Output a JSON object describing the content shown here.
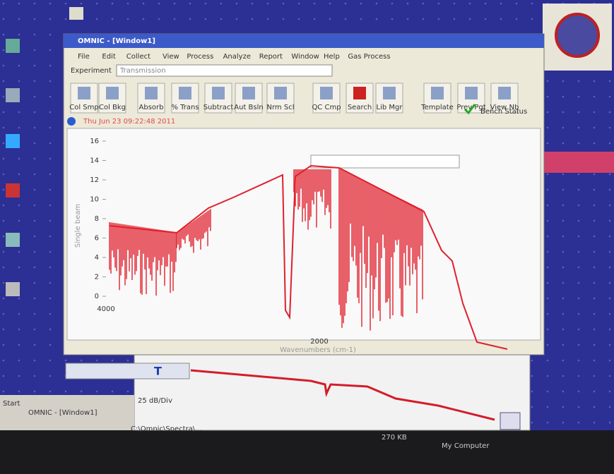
{
  "window": {
    "title": "OMNIC - [Window1]",
    "menu": [
      "File",
      "Edit",
      "Collect",
      "View",
      "Process",
      "Analyze",
      "Report",
      "Window",
      "Help",
      "Gas Process"
    ]
  },
  "experiment": {
    "label": "Experiment",
    "value": "Transmission"
  },
  "toolbar": [
    "Col Smp",
    "Col Bkg",
    "Absorb",
    "% Trans",
    "Subtract",
    "Aut Bsln",
    "Nrm Scl",
    "QC Cmp",
    "Search",
    "Lib Mgr",
    "Template",
    "Prev Pgt",
    "View Nb"
  ],
  "bench_status": "Bench Status",
  "spectrum_title": "Thu Jun 23 09:22:48 2011",
  "y_axis": {
    "label": "Single beam",
    "ticks": [
      "16",
      "14",
      "12",
      "10",
      "8",
      "6",
      "4",
      "2",
      "0"
    ]
  },
  "x_axis": {
    "label": "Wavenumbers (cm-1)",
    "ticks": [
      "4000",
      "2000"
    ]
  },
  "pane": {
    "label": "25 dB/Div"
  },
  "taskbar": {
    "start": "Start",
    "items": [
      "OMNIC - [Window1]",
      "C:\\Omnic\\Spectra\\..."
    ],
    "size": "270 KB",
    "location": "My Computer"
  }
}
